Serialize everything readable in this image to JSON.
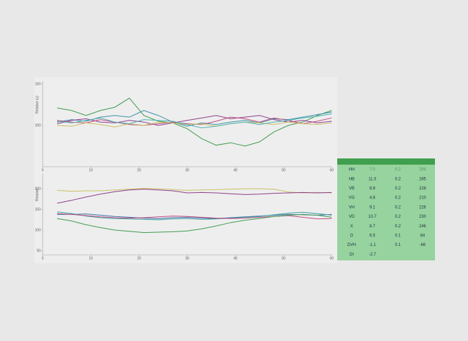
{
  "chart_data": [
    {
      "type": "line",
      "ylabel": "Relative (u)",
      "x": [
        3,
        6,
        9,
        12,
        15,
        18,
        21,
        24,
        27,
        30,
        33,
        36,
        39,
        42,
        45,
        48,
        51,
        54,
        57,
        60
      ],
      "xlim": [
        0,
        60
      ],
      "xticks": [
        0,
        10,
        20,
        30,
        40,
        50,
        60
      ],
      "ylim": [
        50,
        150
      ],
      "yticks": [
        100,
        150
      ],
      "series": [
        {
          "color": "#3c9a4c",
          "values": [
            121,
            118,
            112,
            118,
            122,
            133,
            112,
            105,
            103,
            96,
            84,
            76,
            79,
            75,
            80,
            92,
            100,
            104,
            112,
            118
          ]
        },
        {
          "color": "#3a8fa8",
          "values": [
            104,
            107,
            105,
            110,
            112,
            110,
            118,
            112,
            104,
            99,
            103,
            101,
            104,
            106,
            103,
            108,
            107,
            110,
            113,
            116
          ]
        },
        {
          "color": "#8c3a8a",
          "values": [
            102,
            106,
            108,
            104,
            103,
            106,
            104,
            100,
            103,
            106,
            109,
            112,
            108,
            110,
            112,
            107,
            104,
            106,
            103,
            105
          ]
        },
        {
          "color": "#c04a80",
          "values": [
            106,
            104,
            103,
            107,
            104,
            101,
            100,
            102,
            104,
            102,
            101,
            105,
            110,
            108,
            104,
            109,
            106,
            102,
            105,
            109
          ]
        },
        {
          "color": "#c8c060",
          "values": [
            100,
            99,
            103,
            101,
            98,
            102,
            100,
            104,
            103,
            101,
            102,
            99,
            102,
            104,
            103,
            101,
            104,
            102,
            101,
            103
          ]
        },
        {
          "color": "#4ab0b0",
          "values": [
            105,
            103,
            106,
            109,
            104,
            102,
            107,
            106,
            105,
            101,
            97,
            99,
            102,
            104,
            101,
            104,
            106,
            109,
            111,
            114
          ]
        }
      ]
    },
    {
      "type": "line",
      "ylabel": "Relative",
      "x": [
        3,
        6,
        9,
        12,
        15,
        18,
        21,
        24,
        27,
        30,
        33,
        36,
        39,
        42,
        45,
        48,
        51,
        54,
        57,
        60
      ],
      "xlim": [
        0,
        60
      ],
      "xticks": [
        0,
        10,
        20,
        30,
        40,
        50,
        60
      ],
      "ylim": [
        40,
        230
      ],
      "yticks": [
        50,
        100,
        150,
        200
      ],
      "series": [
        {
          "color": "#c8c060",
          "values": [
            196,
            194,
            195,
            195,
            197,
            199,
            201,
            200,
            198,
            196,
            197,
            198,
            199,
            200,
            200,
            199,
            192,
            190,
            191,
            190
          ]
        },
        {
          "color": "#8c3a8a",
          "values": [
            165,
            172,
            180,
            187,
            193,
            197,
            199,
            197,
            195,
            190,
            191,
            190,
            188,
            186,
            187,
            189,
            190,
            191,
            190,
            191
          ]
        },
        {
          "color": "#3a6fa8",
          "values": [
            138,
            138,
            139,
            136,
            133,
            131,
            129,
            128,
            130,
            131,
            129,
            128,
            130,
            132,
            134,
            136,
            138,
            137,
            136,
            138
          ]
        },
        {
          "color": "#3a9fa0",
          "values": [
            144,
            140,
            134,
            130,
            128,
            127,
            126,
            125,
            127,
            128,
            126,
            127,
            129,
            131,
            133,
            137,
            141,
            143,
            140,
            136
          ]
        },
        {
          "color": "#c04a80",
          "values": [
            140,
            138,
            135,
            132,
            130,
            129,
            130,
            132,
            134,
            133,
            131,
            129,
            128,
            129,
            131,
            133,
            135,
            131,
            127,
            128
          ]
        },
        {
          "color": "#3c9a4c",
          "values": [
            128,
            122,
            113,
            106,
            100,
            97,
            94,
            95,
            96,
            98,
            103,
            110,
            118,
            124,
            128,
            133,
            136,
            138,
            136,
            131
          ]
        }
      ]
    }
  ],
  "table": {
    "rows": [
      [
        "HH",
        "7.0",
        "0.2",
        "294"
      ],
      [
        "HB",
        "11.3",
        "0.2",
        "285"
      ],
      [
        "VB",
        "8.8",
        "0.2",
        "228"
      ],
      [
        "VG",
        "4.8",
        "0.2",
        "210"
      ],
      [
        "VH",
        "9.1",
        "0.2",
        "226"
      ],
      [
        "VD",
        "10.7",
        "0.2",
        "230"
      ],
      [
        "X",
        "8.7",
        "0.2",
        "246"
      ],
      [
        "D",
        "6.5",
        "0.1",
        "84"
      ],
      [
        "DVH",
        "-1.1",
        "0.1",
        "-66"
      ],
      [
        "DI",
        "-2.7"
      ]
    ]
  }
}
